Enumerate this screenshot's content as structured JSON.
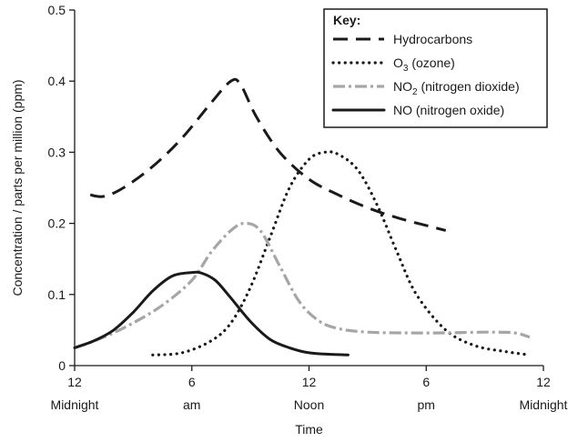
{
  "chart_data": {
    "type": "line",
    "title": "",
    "xlabel": "Time",
    "ylabel": "Concentration / parts per million (ppm)",
    "xlim": [
      0,
      24
    ],
    "ylim": [
      0,
      0.5
    ],
    "grid": false,
    "legend_placement": "top-right",
    "legend_title": "Key:",
    "x_ticks": [
      {
        "value": 0,
        "label": "12",
        "sublabel": "Midnight"
      },
      {
        "value": 6,
        "label": "6",
        "sublabel": "am"
      },
      {
        "value": 12,
        "label": "12",
        "sublabel": "Noon"
      },
      {
        "value": 18,
        "label": "6",
        "sublabel": "pm"
      },
      {
        "value": 24,
        "label": "12",
        "sublabel": "Midnight"
      }
    ],
    "y_ticks": [
      {
        "value": 0,
        "label": "0"
      },
      {
        "value": 0.1,
        "label": "0.1"
      },
      {
        "value": 0.2,
        "label": "0.2"
      },
      {
        "value": 0.3,
        "label": "0.3"
      },
      {
        "value": 0.4,
        "label": "0.4"
      },
      {
        "value": 0.5,
        "label": "0.5"
      }
    ],
    "series": [
      {
        "name": "Hydrocarbons",
        "style": "dashed",
        "color": "#1a1a1a",
        "x": [
          0.8,
          1.5,
          2.5,
          4,
          5.5,
          7,
          8,
          8.5,
          9.3,
          10.5,
          12,
          13.5,
          15,
          16.5,
          18,
          19
        ],
        "y": [
          0.24,
          0.238,
          0.25,
          0.28,
          0.32,
          0.37,
          0.4,
          0.395,
          0.35,
          0.3,
          0.262,
          0.24,
          0.222,
          0.208,
          0.197,
          0.19
        ]
      },
      {
        "name": "O3 (ozone)",
        "name_main": "O",
        "name_sub": "3",
        "name_rest": " (ozone)",
        "style": "dotted",
        "color": "#1a1a1a",
        "x": [
          4,
          5.5,
          7,
          8,
          9,
          10,
          11,
          12,
          12.8,
          13.5,
          14.5,
          15.5,
          16.5,
          17.5,
          19,
          20.5,
          22,
          23.3
        ],
        "y": [
          0.015,
          0.018,
          0.035,
          0.06,
          0.11,
          0.18,
          0.25,
          0.29,
          0.3,
          0.297,
          0.275,
          0.225,
          0.16,
          0.1,
          0.05,
          0.028,
          0.02,
          0.015
        ]
      },
      {
        "name": "NO2 (nitrogen dioxide)",
        "name_main": "NO",
        "name_sub": "2",
        "name_rest": " (nitrogen dioxide)",
        "style": "dash-dot",
        "color": "#a6a6a6",
        "x": [
          0,
          1.5,
          3,
          4.5,
          6,
          7,
          8,
          8.7,
          9.5,
          10.5,
          11.5,
          12.5,
          13.5,
          15,
          17,
          19,
          21,
          22.5,
          23.3
        ],
        "y": [
          0.025,
          0.04,
          0.06,
          0.085,
          0.12,
          0.16,
          0.19,
          0.2,
          0.19,
          0.14,
          0.09,
          0.063,
          0.052,
          0.047,
          0.046,
          0.046,
          0.047,
          0.046,
          0.04
        ]
      },
      {
        "name": "NO (nitrogen oxide)",
        "style": "solid",
        "color": "#1a1a1a",
        "x": [
          0,
          1,
          2,
          3,
          4,
          5,
          6,
          6.5,
          7.2,
          8,
          9,
          10,
          11,
          12,
          13,
          14
        ],
        "y": [
          0.025,
          0.035,
          0.05,
          0.075,
          0.105,
          0.126,
          0.131,
          0.13,
          0.12,
          0.095,
          0.062,
          0.037,
          0.025,
          0.018,
          0.016,
          0.015
        ]
      }
    ]
  }
}
